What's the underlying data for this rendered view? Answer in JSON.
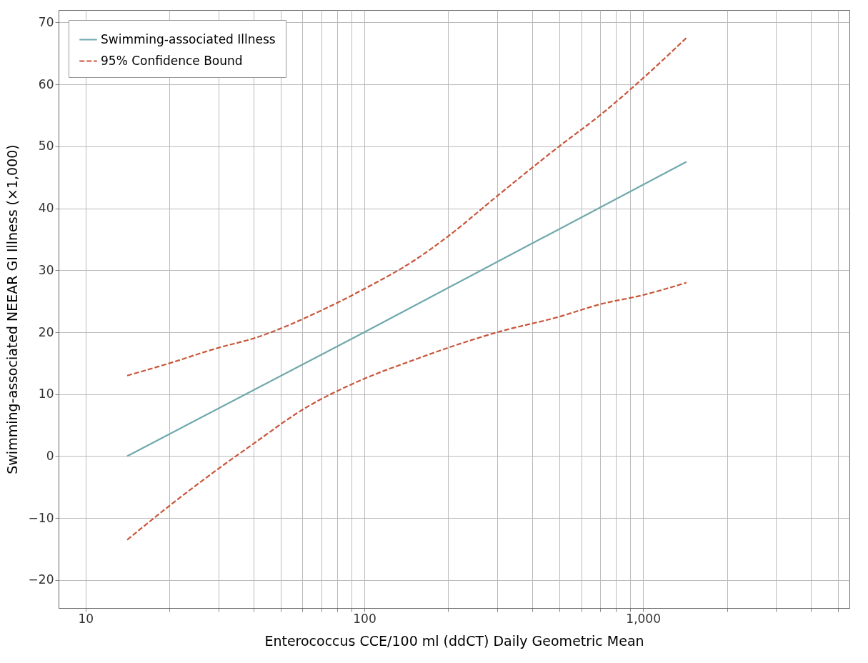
{
  "chart_data": {
    "type": "line",
    "xlabel": "Enterococcus CCE/100 ml (ddCT) Daily Geometric Mean",
    "ylabel": "Swimming-associated NEEAR GI Illness (×1,000)",
    "log": "x",
    "grid": true,
    "legend": "top left",
    "xlim": [
      8,
      5500
    ],
    "ylim": [
      -24.5,
      72
    ],
    "xticks": [
      10,
      {
        "value": 20,
        "label": null
      },
      {
        "value": 30,
        "label": null
      },
      {
        "value": 40,
        "label": null
      },
      {
        "value": 50,
        "label": null
      },
      {
        "value": 60,
        "label": null
      },
      {
        "value": 70,
        "label": null
      },
      {
        "value": 80,
        "label": null
      },
      {
        "value": 90,
        "label": null
      },
      100,
      {
        "value": 200,
        "label": null
      },
      {
        "value": 300,
        "label": null
      },
      {
        "value": 400,
        "label": null
      },
      {
        "value": 500,
        "label": null
      },
      {
        "value": 600,
        "label": null
      },
      {
        "value": 700,
        "label": null
      },
      {
        "value": 800,
        "label": null
      },
      {
        "value": 900,
        "label": null
      },
      {
        "value": 1000,
        "label": "1,000"
      },
      {
        "value": 2000,
        "label": null
      },
      {
        "value": 3000,
        "label": null
      },
      {
        "value": 4000,
        "label": null
      },
      {
        "value": 5000,
        "label": null
      }
    ],
    "yticks": [
      {
        "value": -20,
        "label": "−20"
      },
      {
        "value": -10,
        "label": "−10"
      },
      0,
      10,
      20,
      30,
      40,
      50,
      60,
      70
    ],
    "series": [
      {
        "name": "Swimming-associated Illness",
        "color": "#6fa8ad",
        "line_style": "solid",
        "x": [
          14.1,
          100,
          1430
        ],
        "values": [
          0,
          20,
          47.5
        ]
      },
      {
        "name": "95% Confidence Bound",
        "color": "#c8553a",
        "line_style": "dashed",
        "x": [
          14.1,
          20,
          30,
          40,
          70,
          100,
          150,
          200,
          300,
          500,
          700,
          1000,
          1430
        ],
        "values": [
          13,
          15,
          17.5,
          19,
          23.5,
          27,
          31.5,
          35.5,
          42,
          50,
          55,
          61,
          67.5
        ]
      },
      {
        "color": "#c8553a",
        "line_style": "dashed",
        "x": [
          14.1,
          20,
          30,
          40,
          60,
          100,
          150,
          200,
          300,
          500,
          700,
          1000,
          1430
        ],
        "values": [
          -13.5,
          -8,
          -2,
          2,
          7.5,
          12.5,
          15.5,
          17.5,
          20,
          22.5,
          24.5,
          26,
          28
        ]
      }
    ]
  }
}
